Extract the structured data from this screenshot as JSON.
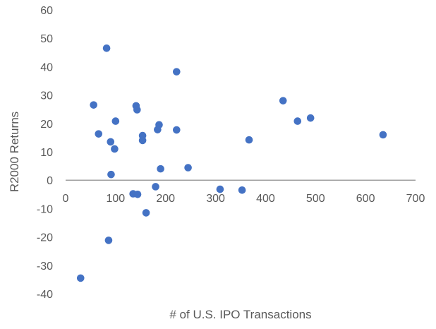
{
  "colors": {
    "marker": "#4472C4",
    "axis": "#808080",
    "text": "#595959",
    "background": "#ffffff"
  },
  "chart_data": {
    "type": "scatter",
    "title": "",
    "xlabel": "# of U.S. IPO Transactions",
    "ylabel": "R2000 Returns",
    "xlim": [
      0,
      700
    ],
    "ylim": [
      -40,
      60
    ],
    "x_ticks": [
      0,
      100,
      200,
      300,
      400,
      500,
      600,
      700
    ],
    "y_ticks": [
      -40,
      -30,
      -20,
      -10,
      0,
      10,
      20,
      30,
      40,
      50,
      60
    ],
    "grid": false,
    "legend": "none",
    "series": [
      {
        "points": [
          {
            "x": 30,
            "y": -34.5
          },
          {
            "x": 56,
            "y": 26.5
          },
          {
            "x": 66,
            "y": 16.3
          },
          {
            "x": 82,
            "y": 46.5
          },
          {
            "x": 86,
            "y": -21.2
          },
          {
            "x": 90,
            "y": 13.5
          },
          {
            "x": 91,
            "y": 2
          },
          {
            "x": 98,
            "y": 11
          },
          {
            "x": 100,
            "y": 20.8
          },
          {
            "x": 135,
            "y": -4.8
          },
          {
            "x": 141,
            "y": 26.2
          },
          {
            "x": 143,
            "y": 24.8
          },
          {
            "x": 144,
            "y": -5
          },
          {
            "x": 154,
            "y": 15.7
          },
          {
            "x": 154,
            "y": 14
          },
          {
            "x": 161,
            "y": -11.5
          },
          {
            "x": 180,
            "y": -2.3
          },
          {
            "x": 184,
            "y": 17.8
          },
          {
            "x": 187,
            "y": 19.5
          },
          {
            "x": 190,
            "y": 4
          },
          {
            "x": 222,
            "y": 38.2
          },
          {
            "x": 222,
            "y": 17.7
          },
          {
            "x": 245,
            "y": 4.4
          },
          {
            "x": 309,
            "y": -3.2
          },
          {
            "x": 353,
            "y": -3.5
          },
          {
            "x": 367,
            "y": 14.2
          },
          {
            "x": 435,
            "y": 28
          },
          {
            "x": 464,
            "y": 20.8
          },
          {
            "x": 490,
            "y": 21.9
          },
          {
            "x": 635,
            "y": 16
          }
        ]
      }
    ]
  }
}
